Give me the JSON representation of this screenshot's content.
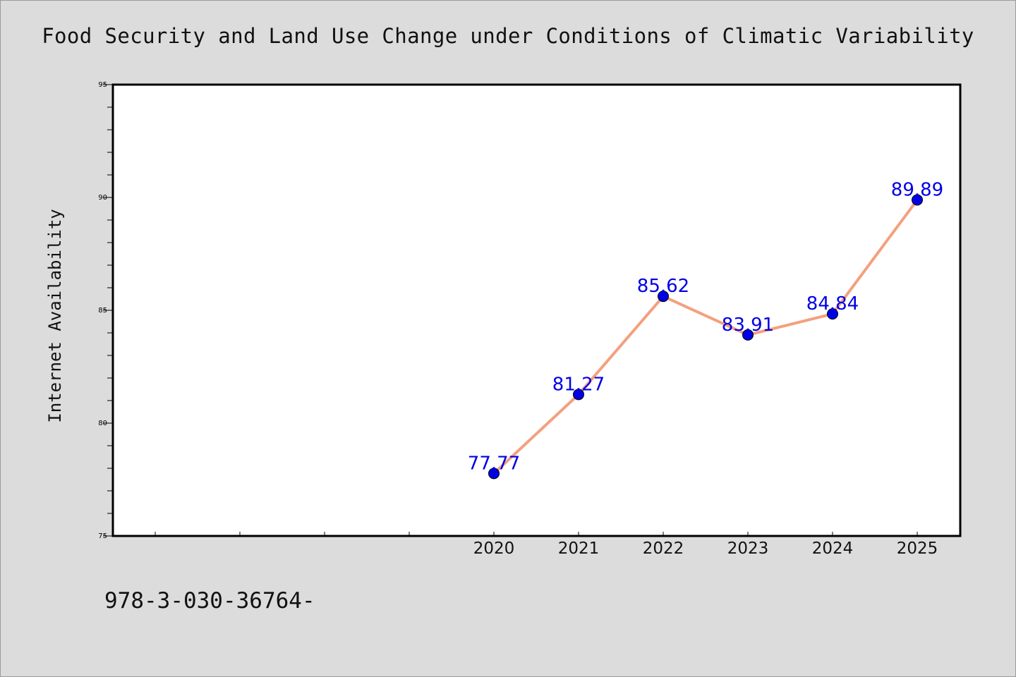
{
  "chart_data": {
    "type": "line",
    "title": "Food Security and Land Use Change under Conditions of Climatic Variability",
    "xlabel": "",
    "ylabel": "Internet Availability",
    "categories": [
      "",
      "",
      "",
      "",
      "2020",
      "2021",
      "2022",
      "2023",
      "2024",
      "2025"
    ],
    "series": [
      {
        "values": [
          null,
          null,
          null,
          null,
          77.77,
          81.27,
          85.62,
          83.91,
          84.84,
          89.89
        ]
      }
    ],
    "data_labels": [
      "",
      "",
      "",
      "",
      "77.77",
      "81.27",
      "85.62",
      "83.91",
      "84.84",
      "89.89"
    ],
    "ylim": [
      75,
      95
    ],
    "yticks": [
      "75",
      "80",
      "85",
      "90",
      "95"
    ],
    "grid": false,
    "legend": "none",
    "line_color": "#f4a07e",
    "marker_color": "#0000e6",
    "label_color": "#0000e6",
    "plot_background": "#ffffff"
  },
  "footer": {
    "code": "978-3-030-36764-"
  }
}
